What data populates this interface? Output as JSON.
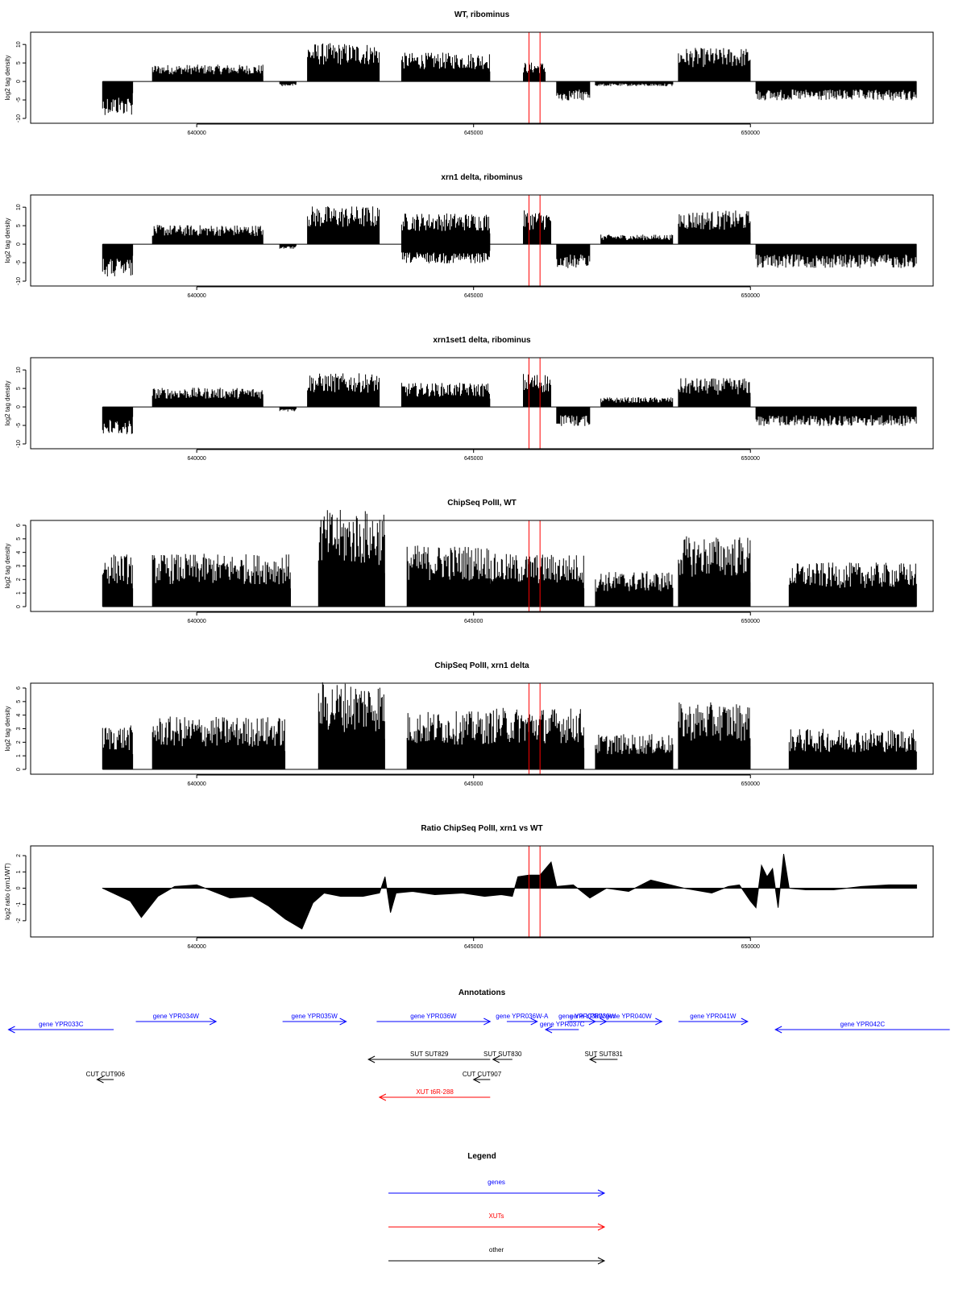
{
  "chart_data": [
    {
      "type": "bar",
      "title": "WT, ribominus",
      "ylabel": "log2 tag density",
      "xlim": [
        637000,
        653300
      ],
      "ylim": [
        -10,
        12
      ],
      "yticks": [
        -10,
        -5,
        0,
        5,
        10
      ],
      "yticklabels": [
        "-10",
        "-5",
        "0",
        "5",
        "10"
      ],
      "xticks": [
        640000,
        645000,
        650000
      ],
      "xticklabels": [
        "640000",
        "645000",
        "650000"
      ],
      "markers": [
        646000,
        646200
      ],
      "marker_color": "#ff0000",
      "segments": [
        {
          "from": 638300,
          "to": 638850,
          "value": -7
        },
        {
          "from": 639200,
          "to": 641200,
          "value": 3.5
        },
        {
          "from": 641500,
          "to": 641800,
          "value": -1
        },
        {
          "from": 642000,
          "to": 643300,
          "value": 8
        },
        {
          "from": 643700,
          "to": 645300,
          "value": 6
        },
        {
          "from": 645900,
          "to": 646300,
          "value": 4
        },
        {
          "from": 646500,
          "to": 647100,
          "value": -4
        },
        {
          "from": 647200,
          "to": 648600,
          "value": -1
        },
        {
          "from": 648700,
          "to": 650000,
          "value": 7
        },
        {
          "from": 650100,
          "to": 653000,
          "value": -4
        }
      ]
    },
    {
      "type": "bar",
      "title": "xrn1 delta, ribominus",
      "ylabel": "log2 tag density",
      "xlim": [
        637000,
        653300
      ],
      "ylim": [
        -10,
        12
      ],
      "yticks": [
        -10,
        -5,
        0,
        5,
        10
      ],
      "yticklabels": [
        "-10",
        "-5",
        "0",
        "5",
        "10"
      ],
      "xticks": [
        640000,
        645000,
        650000
      ],
      "xticklabels": [
        "640000",
        "645000",
        "650000"
      ],
      "markers": [
        646000,
        646200
      ],
      "marker_color": "#ff0000",
      "segments": [
        {
          "from": 638300,
          "to": 638850,
          "value": -7
        },
        {
          "from": 639200,
          "to": 641200,
          "value": 4
        },
        {
          "from": 641500,
          "to": 641800,
          "value": -1
        },
        {
          "from": 642000,
          "to": 643300,
          "value": 8
        },
        {
          "from": 643700,
          "to": 645300,
          "value": 6.5
        },
        {
          "from": 643700,
          "to": 645300,
          "value": -4
        },
        {
          "from": 645900,
          "to": 646400,
          "value": 7
        },
        {
          "from": 646500,
          "to": 647100,
          "value": -5
        },
        {
          "from": 647300,
          "to": 648600,
          "value": 2
        },
        {
          "from": 648700,
          "to": 650000,
          "value": 7
        },
        {
          "from": 650100,
          "to": 653000,
          "value": -5
        }
      ]
    },
    {
      "type": "bar",
      "title": "xrn1set1 delta, ribominus",
      "ylabel": "log2 tag density",
      "xlim": [
        637000,
        653300
      ],
      "ylim": [
        -10,
        12
      ],
      "yticks": [
        -10,
        -5,
        0,
        5,
        10
      ],
      "yticklabels": [
        "-10",
        "-5",
        "0",
        "5",
        "10"
      ],
      "xticks": [
        640000,
        645000,
        650000
      ],
      "xticklabels": [
        "640000",
        "645000",
        "650000"
      ],
      "markers": [
        646000,
        646200
      ],
      "marker_color": "#ff0000",
      "segments": [
        {
          "from": 638300,
          "to": 638850,
          "value": -6
        },
        {
          "from": 639200,
          "to": 641200,
          "value": 4
        },
        {
          "from": 641500,
          "to": 641800,
          "value": -1
        },
        {
          "from": 642000,
          "to": 643300,
          "value": 7
        },
        {
          "from": 643700,
          "to": 645300,
          "value": 5
        },
        {
          "from": 645900,
          "to": 646400,
          "value": 7
        },
        {
          "from": 646500,
          "to": 647100,
          "value": -4
        },
        {
          "from": 647300,
          "to": 648600,
          "value": 2
        },
        {
          "from": 648700,
          "to": 650000,
          "value": 6
        },
        {
          "from": 650100,
          "to": 653000,
          "value": -4
        }
      ]
    },
    {
      "type": "bar",
      "title": "ChipSeq PolII, WT",
      "ylabel": "log2 tag density",
      "xlim": [
        637000,
        653300
      ],
      "ylim": [
        0,
        6
      ],
      "yticks": [
        0,
        1,
        2,
        3,
        4,
        5,
        6
      ],
      "yticklabels": [
        "0",
        "1",
        "2",
        "3",
        "4",
        "5",
        "6"
      ],
      "xticks": [
        640000,
        645000,
        650000
      ],
      "xticklabels": [
        "640000",
        "645000",
        "650000"
      ],
      "markers": [
        646000,
        646200
      ],
      "marker_color": "#ff0000",
      "segments": [
        {
          "from": 638300,
          "to": 638850,
          "value": 3
        },
        {
          "from": 639200,
          "to": 641700,
          "value": 3
        },
        {
          "from": 642200,
          "to": 643400,
          "value": 5.5
        },
        {
          "from": 643800,
          "to": 645300,
          "value": 3.5
        },
        {
          "from": 645300,
          "to": 647000,
          "value": 3
        },
        {
          "from": 647200,
          "to": 648600,
          "value": 2
        },
        {
          "from": 648700,
          "to": 650000,
          "value": 4
        },
        {
          "from": 650700,
          "to": 653000,
          "value": 2.5
        }
      ]
    },
    {
      "type": "bar",
      "title": "ChipSeq PolII, xrn1 delta",
      "ylabel": "log2 tag density",
      "xlim": [
        637000,
        653300
      ],
      "ylim": [
        0,
        6
      ],
      "yticks": [
        0,
        1,
        2,
        3,
        4,
        5,
        6
      ],
      "yticklabels": [
        "0",
        "1",
        "2",
        "3",
        "4",
        "5",
        "6"
      ],
      "xticks": [
        640000,
        645000,
        650000
      ],
      "xticklabels": [
        "640000",
        "645000",
        "650000"
      ],
      "markers": [
        646000,
        646200
      ],
      "marker_color": "#ff0000",
      "segments": [
        {
          "from": 638300,
          "to": 638850,
          "value": 2.5
        },
        {
          "from": 639200,
          "to": 641600,
          "value": 3
        },
        {
          "from": 642200,
          "to": 643400,
          "value": 5
        },
        {
          "from": 643800,
          "to": 645300,
          "value": 3.3
        },
        {
          "from": 645300,
          "to": 647000,
          "value": 3.5
        },
        {
          "from": 647200,
          "to": 648600,
          "value": 2
        },
        {
          "from": 648700,
          "to": 650000,
          "value": 3.8
        },
        {
          "from": 650700,
          "to": 653000,
          "value": 2.3
        }
      ]
    },
    {
      "type": "area",
      "title": "Ratio ChipSeq PolII, xrn1 vs WT",
      "ylabel": "log2 ratio (xrn1/WT)",
      "xlim": [
        637000,
        653300
      ],
      "ylim": [
        -2.7,
        2.3
      ],
      "yticks": [
        -2,
        -1,
        0,
        1,
        2
      ],
      "yticklabels": [
        "-2",
        "-1",
        "0",
        "1",
        "2"
      ],
      "xticks": [
        640000,
        645000,
        650000
      ],
      "xticklabels": [
        "640000",
        "645000",
        "650000"
      ],
      "markers": [
        646000,
        646200
      ],
      "marker_color": "#ff0000",
      "x": [
        638300,
        638800,
        639000,
        639300,
        639600,
        640000,
        640300,
        640600,
        641000,
        641300,
        641600,
        641900,
        642100,
        642300,
        642600,
        643000,
        643300,
        643400,
        643500,
        643600,
        643900,
        644300,
        644800,
        645200,
        645500,
        645700,
        645800,
        646000,
        646200,
        646400,
        646500,
        646800,
        647100,
        647400,
        647800,
        648200,
        648800,
        649300,
        649600,
        649800,
        650000,
        650100,
        650200,
        650300,
        650400,
        650500,
        650600,
        650700,
        651000,
        651500,
        652000,
        652500,
        653000
      ],
      "y": [
        0,
        -0.8,
        -1.8,
        -0.5,
        0.1,
        0.2,
        -0.2,
        -0.6,
        -0.5,
        -1.1,
        -1.9,
        -2.5,
        -0.9,
        -0.3,
        -0.5,
        -0.5,
        -0.3,
        0.7,
        -1.5,
        -0.3,
        -0.2,
        -0.4,
        -0.3,
        -0.5,
        -0.4,
        -0.5,
        0.7,
        0.8,
        0.8,
        1.6,
        0.1,
        0.2,
        -0.6,
        0,
        -0.2,
        0.5,
        0,
        -0.3,
        0.1,
        0.2,
        -0.8,
        -1.2,
        1.4,
        0.7,
        1.2,
        -1.2,
        2.1,
        0,
        -0.1,
        -0.1,
        0.1,
        0.2,
        0.2
      ]
    }
  ],
  "annotations": {
    "title": "Annotations",
    "xlim": [
      637000,
      653300
    ],
    "features": [
      {
        "label": "gene YPR033C",
        "from": 636600,
        "to": 638500,
        "direction": "rev",
        "color": "#0000ff",
        "row": 1
      },
      {
        "label": "gene YPR034W",
        "from": 638900,
        "to": 640350,
        "direction": "fwd",
        "color": "#0000ff",
        "row": 0
      },
      {
        "label": "gene YPR035W",
        "from": 641550,
        "to": 642700,
        "direction": "fwd",
        "color": "#0000ff",
        "row": 0
      },
      {
        "label": "gene YPR036W",
        "from": 643250,
        "to": 645300,
        "direction": "fwd",
        "color": "#0000ff",
        "row": 0
      },
      {
        "label": "gene YPR036W-A",
        "from": 645600,
        "to": 646150,
        "direction": "fwd",
        "color": "#0000ff",
        "row": 0
      },
      {
        "label": "gene YPR037C",
        "from": 646300,
        "to": 646900,
        "direction": "rev",
        "color": "#0000ff",
        "row": 1
      },
      {
        "label": "gene YPR038W",
        "from": 646700,
        "to": 647200,
        "direction": "fwd",
        "color": "#0000ff",
        "row": 0
      },
      {
        "label": "gene YPR039W",
        "from": 646900,
        "to": 647400,
        "direction": "fwd",
        "color": "#0000ff",
        "row": 0
      },
      {
        "label": "gene YPR040W",
        "from": 647200,
        "to": 648400,
        "direction": "fwd",
        "color": "#0000ff",
        "row": 0
      },
      {
        "label": "gene YPR041W",
        "from": 648700,
        "to": 649950,
        "direction": "fwd",
        "color": "#0000ff",
        "row": 0
      },
      {
        "label": "gene YPR042C",
        "from": 650450,
        "to": 653600,
        "direction": "rev",
        "color": "#0000ff",
        "row": 1
      },
      {
        "label": "SUT SUT829",
        "from": 643100,
        "to": 645300,
        "direction": "rev",
        "color": "#000000",
        "row": 3
      },
      {
        "label": "SUT SUT830",
        "from": 645350,
        "to": 645700,
        "direction": "rev",
        "color": "#000000",
        "row": 3
      },
      {
        "label": "SUT SUT831",
        "from": 647100,
        "to": 647600,
        "direction": "rev",
        "color": "#000000",
        "row": 3
      },
      {
        "label": "CUT CUT906",
        "from": 638200,
        "to": 638500,
        "direction": "rev",
        "color": "#000000",
        "row": 4
      },
      {
        "label": "CUT CUT907",
        "from": 645000,
        "to": 645300,
        "direction": "rev",
        "color": "#000000",
        "row": 4
      },
      {
        "label": "XUT t6R-288",
        "from": 643300,
        "to": 645300,
        "direction": "rev",
        "color": "#ff0000",
        "row": 5
      }
    ]
  },
  "legend": {
    "title": "Legend",
    "items": [
      {
        "label": "genes",
        "color": "#0000ff"
      },
      {
        "label": "XUTs",
        "color": "#ff0000"
      },
      {
        "label": "other",
        "color": "#000000"
      }
    ]
  }
}
